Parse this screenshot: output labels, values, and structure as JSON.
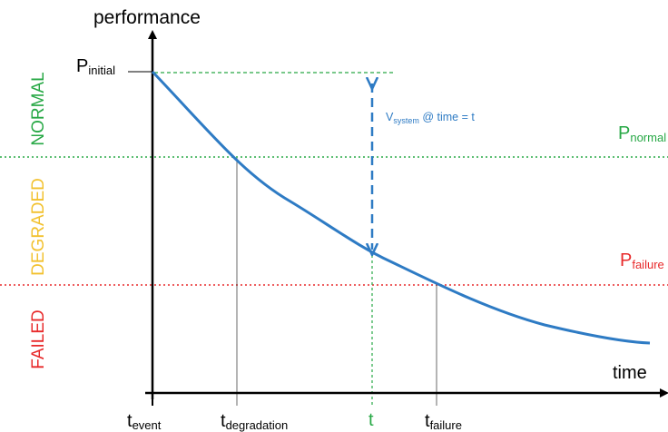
{
  "axes": {
    "y_label": "performance",
    "x_label": "time"
  },
  "zones": {
    "normal": "NORMAL",
    "degraded": "DEGRADED",
    "failed": "FAILED"
  },
  "thresholds": {
    "p_initial": {
      "base": "P",
      "sub": "initial"
    },
    "p_normal": {
      "base": "P",
      "sub": "normal"
    },
    "p_failure": {
      "base": "P",
      "sub": "failure"
    }
  },
  "time_markers": {
    "t_event": {
      "base": "t",
      "sub": "event"
    },
    "t_degradation": {
      "base": "t",
      "sub": "degradation"
    },
    "t": "t",
    "t_failure": {
      "base": "t",
      "sub": "failure"
    }
  },
  "vulnerability_annotation": {
    "base": "V",
    "sub": "system",
    "suffix": " @ time = t"
  },
  "colors": {
    "normal": "#27a845",
    "degraded": "#f2c12e",
    "failed": "#e8292a",
    "curve": "#2e7bc4",
    "axis": "#000000"
  }
}
